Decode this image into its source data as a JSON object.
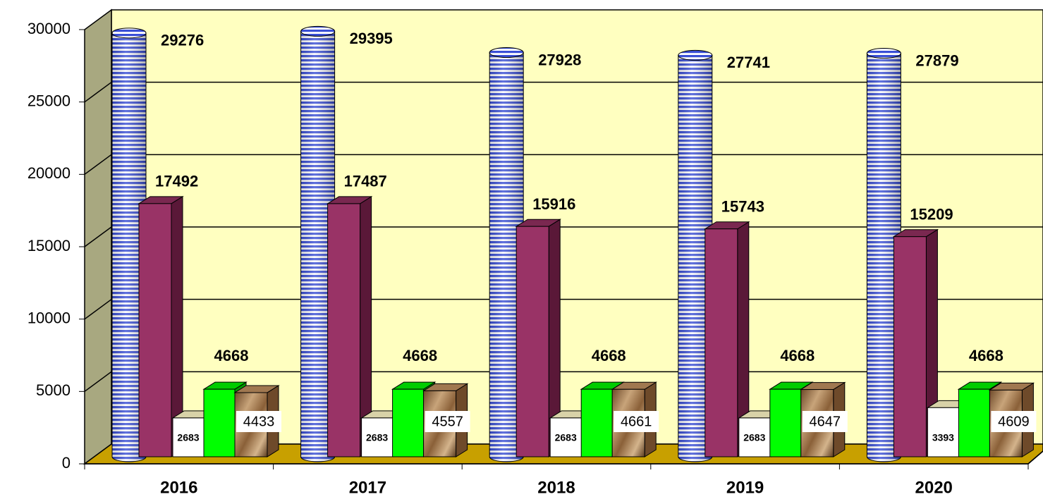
{
  "chart_data": {
    "type": "bar3d",
    "categories": [
      "2016",
      "2017",
      "2018",
      "2019",
      "2020"
    ],
    "series": [
      {
        "color": "#3a4fd6",
        "values": [
          29276,
          29395,
          27928,
          27741,
          27879
        ]
      },
      {
        "color": "#993366",
        "values": [
          17492,
          17487,
          15916,
          15743,
          15209
        ]
      },
      {
        "color": "#d8d2a8",
        "values": [
          2683,
          2683,
          2683,
          2683,
          3393
        ]
      },
      {
        "color": "#00ff00",
        "values": [
          4668,
          4668,
          4668,
          4668,
          4668
        ]
      },
      {
        "color": "#a07850",
        "values": [
          4433,
          4557,
          4661,
          4647,
          4609
        ]
      }
    ],
    "ylim": [
      0,
      30000
    ],
    "yticks": [
      0,
      5000,
      10000,
      15000,
      20000,
      25000,
      30000
    ],
    "grid": true
  }
}
